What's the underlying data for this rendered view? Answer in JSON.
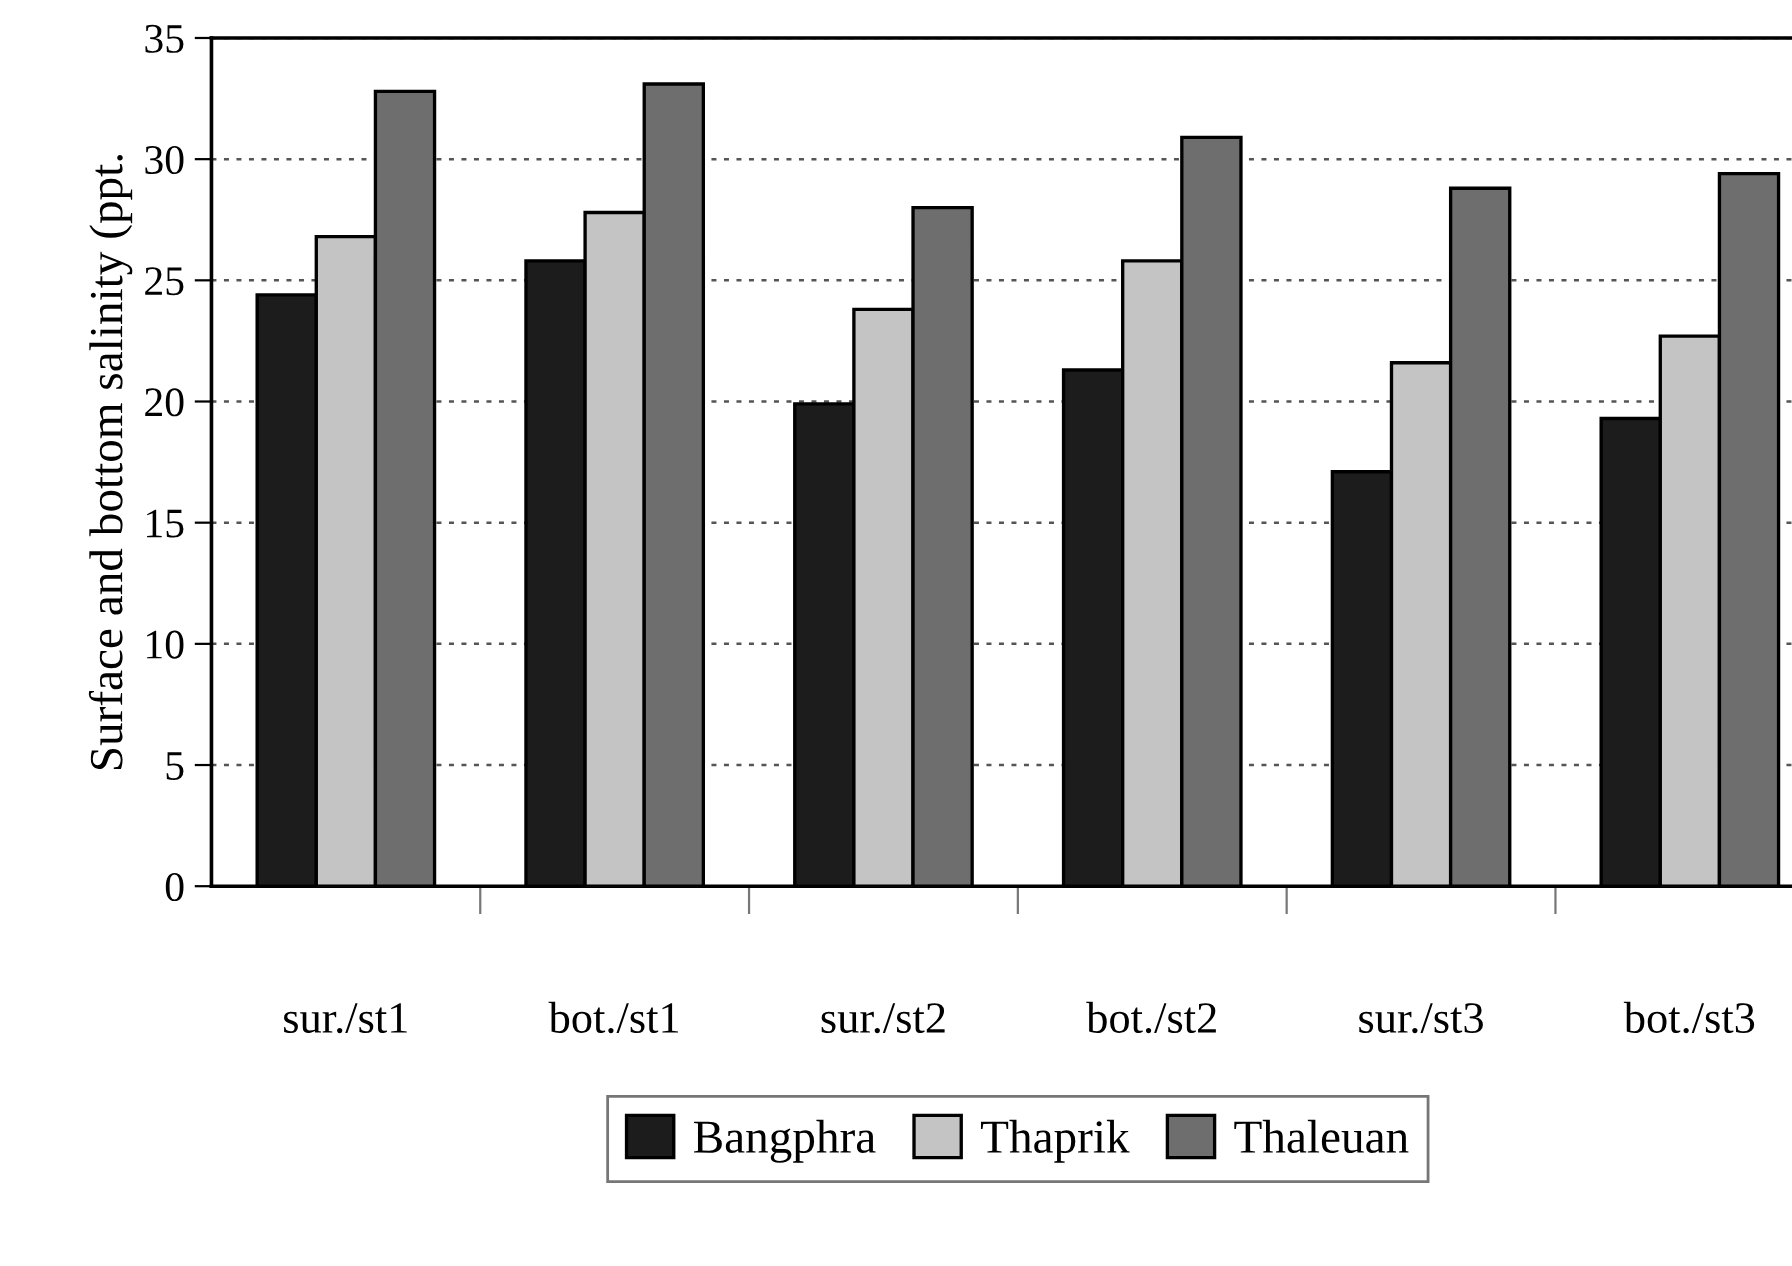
{
  "chart_data": {
    "type": "bar",
    "ylabel": "Surface and bottom salinity (ppt.",
    "categories": [
      "sur./st1",
      "bot./st1",
      "sur./st2",
      "bot./st2",
      "sur./st3",
      "bot./st3"
    ],
    "series": [
      {
        "name": "Bangphra",
        "color": "#1c1c1c",
        "values": [
          24.4,
          25.8,
          19.9,
          21.3,
          17.1,
          19.3
        ]
      },
      {
        "name": "Thaprik",
        "color": "#c4c4c4",
        "values": [
          26.8,
          27.8,
          23.8,
          25.8,
          21.6,
          22.7
        ]
      },
      {
        "name": "Thaleuan",
        "color": "#6e6e6e",
        "values": [
          32.8,
          33.1,
          28.0,
          30.9,
          28.8,
          29.4
        ]
      }
    ],
    "ylim": [
      0,
      35
    ],
    "yticks": [
      0,
      5,
      10,
      15,
      20,
      25,
      30,
      35
    ],
    "grid": "y",
    "legend": "bottom"
  }
}
